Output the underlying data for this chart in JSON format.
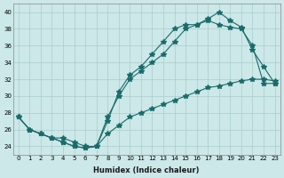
{
  "xlabel": "Humidex (Indice chaleur)",
  "ylabel": "",
  "bg_color": "#cce8e8",
  "grid_color": "#aacccc",
  "line_color": "#1a6b6b",
  "xlim": [
    0,
    23
  ],
  "ylim": [
    23,
    41
  ],
  "xticks": [
    0,
    1,
    2,
    3,
    4,
    5,
    6,
    7,
    8,
    9,
    10,
    11,
    12,
    13,
    14,
    15,
    16,
    17,
    18,
    19,
    20,
    21,
    22,
    23
  ],
  "yticks": [
    24,
    26,
    28,
    30,
    32,
    34,
    36,
    38,
    40
  ],
  "line1_x": [
    0,
    1,
    2,
    3,
    4,
    5,
    6,
    7,
    8,
    9,
    10,
    11,
    12,
    13,
    14,
    15,
    16,
    17,
    18,
    19,
    20,
    21,
    22,
    23
  ],
  "line1_y": [
    27.5,
    26.0,
    25.5,
    25.0,
    24.5,
    24.0,
    23.8,
    24.0,
    27.0,
    30.5,
    32.5,
    33.5,
    35.0,
    36.5,
    38.0,
    38.5,
    38.5,
    39.2,
    40.0,
    39.0,
    38.2,
    35.5,
    33.5,
    31.5
  ],
  "line2_x": [
    0,
    1,
    2,
    3,
    4,
    5,
    6,
    7,
    8,
    9,
    10,
    11,
    12,
    13,
    14,
    15,
    16,
    17,
    18,
    19,
    20,
    21,
    22,
    23
  ],
  "line2_y": [
    27.5,
    26.0,
    25.5,
    25.0,
    24.5,
    24.0,
    23.8,
    24.0,
    27.5,
    30.0,
    32.0,
    33.0,
    34.0,
    35.0,
    36.5,
    38.0,
    38.5,
    39.0,
    38.5,
    38.2,
    38.0,
    36.0,
    31.5,
    31.5
  ],
  "line3_x": [
    0,
    1,
    2,
    3,
    4,
    5,
    6,
    7,
    8,
    9,
    10,
    11,
    12,
    13,
    14,
    15,
    16,
    17,
    18,
    19,
    20,
    21,
    22,
    23
  ],
  "line3_y": [
    27.5,
    26.0,
    25.5,
    25.0,
    25.0,
    24.5,
    24.0,
    24.0,
    25.5,
    26.5,
    27.5,
    28.0,
    28.5,
    29.0,
    29.5,
    30.0,
    30.5,
    31.0,
    31.2,
    31.5,
    31.8,
    32.0,
    32.0,
    31.8
  ]
}
